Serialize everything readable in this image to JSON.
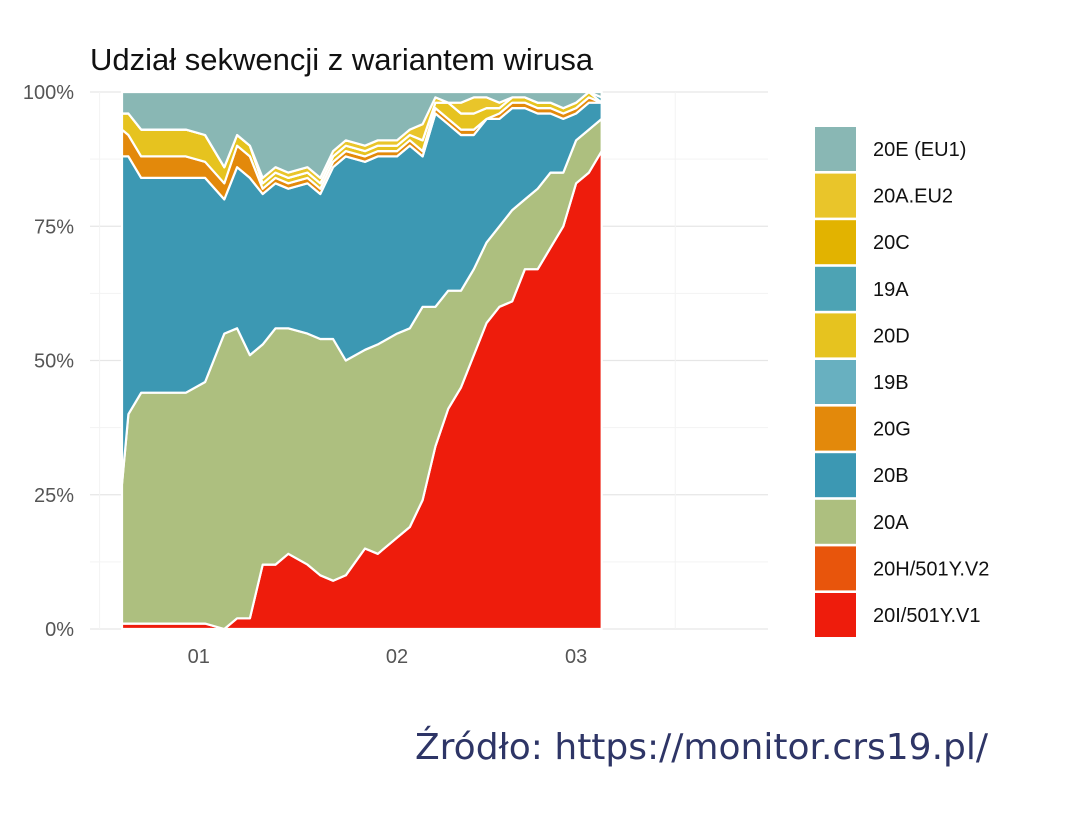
{
  "chart_data": {
    "type": "area",
    "stacked": true,
    "normalized": true,
    "title": "Udział sekwencji z wariantem wirusa",
    "xlabel": "",
    "ylabel": "",
    "y_tick_labels": [
      "0%",
      "25%",
      "50%",
      "75%",
      "100%"
    ],
    "y_ticks": [
      0,
      25,
      50,
      75,
      100
    ],
    "ylim": [
      0,
      100
    ],
    "x_tick_labels": [
      "01",
      "02",
      "03"
    ],
    "x_ticks": [
      "2021-01-01",
      "2021-02-01",
      "2021-03-01"
    ],
    "xlim": [
      "2020-12-15",
      "2021-03-31"
    ],
    "grid": true,
    "legend_position": "right",
    "x": [
      "2020-12-20",
      "2020-12-21",
      "2020-12-23",
      "2020-12-26",
      "2020-12-30",
      "2021-01-02",
      "2021-01-05",
      "2021-01-07",
      "2021-01-09",
      "2021-01-11",
      "2021-01-13",
      "2021-01-15",
      "2021-01-18",
      "2021-01-20",
      "2021-01-22",
      "2021-01-24",
      "2021-01-27",
      "2021-01-29",
      "2021-02-01",
      "2021-02-03",
      "2021-02-05",
      "2021-02-07",
      "2021-02-09",
      "2021-02-11",
      "2021-02-13",
      "2021-02-15",
      "2021-02-17",
      "2021-02-19",
      "2021-02-21",
      "2021-02-23",
      "2021-02-25",
      "2021-02-27",
      "2021-03-01",
      "2021-03-03",
      "2021-03-05"
    ],
    "series": [
      {
        "name": "20I/501Y.V1",
        "color": "#ee1c0c",
        "values": [
          1,
          1,
          1,
          1,
          1,
          1,
          0,
          2,
          2,
          12,
          12,
          14,
          12,
          10,
          9,
          10,
          15,
          14,
          17,
          19,
          24,
          34,
          41,
          45,
          51,
          57,
          60,
          61,
          67,
          67,
          71,
          75,
          83,
          85,
          89
        ]
      },
      {
        "name": "20H/501Y.V2",
        "color": "#e8550c",
        "values": [
          0,
          0,
          0,
          0,
          0,
          0,
          0,
          0,
          0,
          0,
          0,
          0,
          0,
          0,
          0,
          0,
          0,
          0,
          0,
          0,
          0,
          0,
          0,
          0,
          0,
          0,
          0,
          0,
          0,
          0,
          0,
          0,
          0,
          0,
          0
        ]
      },
      {
        "name": "20A",
        "color": "#adbf7f",
        "values": [
          26,
          39,
          43,
          43,
          43,
          45,
          55,
          54,
          49,
          41,
          44,
          42,
          43,
          44,
          45,
          40,
          37,
          39,
          38,
          37,
          36,
          26,
          22,
          18,
          16,
          15,
          15,
          17,
          13,
          15,
          14,
          10,
          8,
          8,
          6
        ]
      },
      {
        "name": "20B",
        "color": "#3c98b3",
        "values": [
          61,
          48,
          40,
          40,
          40,
          38,
          25,
          30,
          33,
          28,
          27,
          26,
          28,
          27,
          32,
          38,
          35,
          35,
          33,
          34,
          28,
          36,
          31,
          29,
          25,
          23,
          20,
          19,
          17,
          14,
          11,
          10,
          5,
          5,
          3
        ]
      },
      {
        "name": "20G",
        "color": "#e3890b",
        "values": [
          5,
          4,
          4,
          4,
          4,
          3,
          3,
          4,
          4,
          1,
          1,
          1,
          1,
          1,
          1,
          1,
          1,
          1,
          1,
          1,
          1,
          1,
          1,
          1,
          1,
          0,
          1,
          1,
          1,
          1,
          1,
          1,
          1,
          1,
          0
        ]
      },
      {
        "name": "19B",
        "color": "#68b0c0",
        "values": [
          0,
          0,
          0,
          0,
          0,
          0,
          0,
          0,
          0,
          0,
          0,
          0,
          0,
          0,
          0,
          0,
          0,
          0,
          0,
          0,
          0,
          0,
          0,
          0,
          0,
          0,
          0,
          0,
          0,
          0,
          0,
          0,
          0,
          0,
          0
        ]
      },
      {
        "name": "20D",
        "color": "#e6c31f",
        "values": [
          3,
          4,
          5,
          5,
          5,
          5,
          3,
          2,
          2,
          1,
          1,
          1,
          1,
          1,
          1,
          1,
          1,
          1,
          1,
          1,
          2,
          1,
          3,
          3,
          3,
          2,
          1,
          1,
          1,
          1,
          1,
          1,
          1,
          1,
          0
        ]
      },
      {
        "name": "19A",
        "color": "#4da3b4",
        "values": [
          0,
          0,
          0,
          0,
          0,
          0,
          0,
          0,
          0,
          0,
          0,
          0,
          0,
          0,
          0,
          0,
          0,
          0,
          0,
          0,
          0,
          0,
          0,
          0,
          0,
          0,
          0,
          0,
          0,
          0,
          0,
          0,
          0,
          0,
          1
        ]
      },
      {
        "name": "20C",
        "color": "#e2b300",
        "values": [
          0,
          0,
          0,
          0,
          0,
          0,
          0,
          0,
          0,
          0,
          0,
          0,
          0,
          0,
          0,
          0,
          0,
          0,
          0,
          0,
          0,
          0,
          0,
          0,
          0,
          0,
          0,
          0,
          0,
          0,
          0,
          0,
          0,
          0,
          0
        ]
      },
      {
        "name": "20A.EU2",
        "color": "#e9c52a",
        "values": [
          0,
          0,
          0,
          0,
          0,
          0,
          0,
          0,
          0,
          1,
          1,
          1,
          1,
          1,
          1,
          1,
          1,
          1,
          1,
          1,
          3,
          1,
          0,
          2,
          3,
          2,
          1,
          0,
          0,
          0,
          0,
          0,
          0,
          0,
          0
        ]
      },
      {
        "name": "20E (EU1)",
        "color": "#89b7b4",
        "values": [
          4,
          4,
          7,
          7,
          7,
          8,
          14,
          8,
          10,
          16,
          14,
          15,
          14,
          16,
          11,
          9,
          10,
          9,
          9,
          7,
          6,
          1,
          2,
          2,
          1,
          1,
          2,
          1,
          1,
          2,
          2,
          3,
          2,
          0,
          1
        ]
      }
    ]
  },
  "source_text": "Źródło: https://monitor.crs19.pl/"
}
